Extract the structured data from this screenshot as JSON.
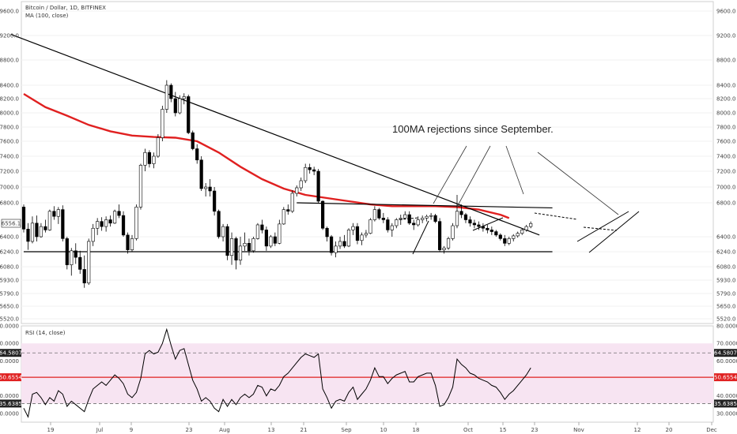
{
  "header": {
    "symbol": "Bitcoin / Dollar, 1D, BITFINEX",
    "indicator": "MA (100, close)"
  },
  "rsi_header": "RSI (14, close)",
  "annotation": "100MA rejections since September.",
  "colors": {
    "up": "#ffffff",
    "down": "#000000",
    "ma": "#e02020",
    "rsi_band": "#f7e4f2",
    "rsi_line": "#000000",
    "rsi_mid": "#e02020",
    "badge_dark": "#222222",
    "badge_red": "#e02020"
  },
  "chart_data": [
    {
      "type": "candlestick",
      "title": "Bitcoin / Dollar, 1D, BITFINEX",
      "price_ticks": [
        "9600.0",
        "9200.0",
        "8800.0",
        "8400.0",
        "8200.0",
        "8000.0",
        "7800.0",
        "7600.0",
        "7400.0",
        "7200.0",
        "7000.0",
        "6800.0",
        "6400.0",
        "6240.0",
        "6080.0",
        "5930.0",
        "5790.0",
        "5650.0",
        "5520.0"
      ],
      "price_badges": [
        "6556.1"
      ],
      "x_ticks": [
        "19",
        "Jul",
        "9",
        "23",
        "Aug",
        "13",
        "21",
        "Sep",
        "10",
        "18",
        "Oct",
        "15",
        "23",
        "Nov",
        "12",
        "20",
        "Dec"
      ],
      "ohlc": [
        [
          6750,
          6780,
          6450,
          6490
        ],
        [
          6490,
          6560,
          6260,
          6350
        ],
        [
          6350,
          6640,
          6330,
          6560
        ],
        [
          6560,
          6650,
          6350,
          6400
        ],
        [
          6400,
          6560,
          6390,
          6520
        ],
        [
          6520,
          6600,
          6450,
          6480
        ],
        [
          6480,
          6720,
          6470,
          6700
        ],
        [
          6700,
          6760,
          6600,
          6640
        ],
        [
          6640,
          6750,
          6550,
          6720
        ],
        [
          6720,
          6770,
          6350,
          6380
        ],
        [
          6380,
          6400,
          6050,
          6100
        ],
        [
          6100,
          6280,
          5980,
          6250
        ],
        [
          6250,
          6330,
          6110,
          6180
        ],
        [
          6180,
          6250,
          6000,
          6050
        ],
        [
          6050,
          6200,
          5850,
          5900
        ],
        [
          5900,
          6380,
          5880,
          6350
        ],
        [
          6350,
          6550,
          6300,
          6500
        ],
        [
          6500,
          6620,
          6420,
          6580
        ],
        [
          6580,
          6630,
          6470,
          6520
        ],
        [
          6520,
          6640,
          6460,
          6600
        ],
        [
          6600,
          6650,
          6520,
          6560
        ],
        [
          6560,
          6720,
          6550,
          6700
        ],
        [
          6700,
          6780,
          6620,
          6650
        ],
        [
          6650,
          6700,
          6400,
          6420
        ],
        [
          6420,
          6450,
          6220,
          6260
        ],
        [
          6260,
          6420,
          6240,
          6380
        ],
        [
          6380,
          6780,
          6360,
          6750
        ],
        [
          6750,
          7300,
          6720,
          7280
        ],
        [
          7280,
          7500,
          7200,
          7450
        ],
        [
          7450,
          7480,
          7250,
          7300
        ],
        [
          7300,
          7450,
          7240,
          7400
        ],
        [
          7400,
          7700,
          7380,
          7650
        ],
        [
          7650,
          8100,
          7600,
          8050
        ],
        [
          8050,
          8480,
          8000,
          8400
        ],
        [
          8400,
          8430,
          8150,
          8200
        ],
        [
          8200,
          8300,
          7950,
          8000
        ],
        [
          8000,
          8250,
          7980,
          8200
        ],
        [
          8200,
          8280,
          8120,
          8230
        ],
        [
          8230,
          8260,
          7700,
          7720
        ],
        [
          7720,
          7750,
          7480,
          7500
        ],
        [
          7500,
          7560,
          7300,
          7350
        ],
        [
          7350,
          7400,
          6950,
          6980
        ],
        [
          6980,
          7050,
          6880,
          7000
        ],
        [
          7000,
          7100,
          6880,
          6950
        ],
        [
          6950,
          7000,
          6650,
          6700
        ],
        [
          6700,
          6720,
          6380,
          6400
        ],
        [
          6400,
          6550,
          6350,
          6520
        ],
        [
          6520,
          6550,
          6150,
          6200
        ],
        [
          6200,
          6450,
          6100,
          6380
        ],
        [
          6380,
          6400,
          6050,
          6150
        ],
        [
          6150,
          6400,
          6100,
          6300
        ],
        [
          6300,
          6450,
          6250,
          6330
        ],
        [
          6330,
          6380,
          6200,
          6250
        ],
        [
          6250,
          6400,
          6230,
          6380
        ],
        [
          6380,
          6560,
          6370,
          6540
        ],
        [
          6540,
          6600,
          6440,
          6480
        ],
        [
          6480,
          6520,
          6250,
          6300
        ],
        [
          6300,
          6420,
          6280,
          6400
        ],
        [
          6400,
          6450,
          6300,
          6330
        ],
        [
          6330,
          6600,
          6320,
          6550
        ],
        [
          6550,
          6750,
          6540,
          6720
        ],
        [
          6720,
          6780,
          6660,
          6700
        ],
        [
          6700,
          6960,
          6680,
          6920
        ],
        [
          6920,
          7020,
          6880,
          6990
        ],
        [
          6990,
          7120,
          6950,
          7080
        ],
        [
          7080,
          7300,
          7050,
          7250
        ],
        [
          7250,
          7300,
          7170,
          7220
        ],
        [
          7220,
          7260,
          7150,
          7200
        ],
        [
          7200,
          7230,
          6800,
          6820
        ],
        [
          6820,
          6830,
          6480,
          6500
        ],
        [
          6500,
          6520,
          6350,
          6400
        ],
        [
          6400,
          6420,
          6200,
          6230
        ],
        [
          6230,
          6350,
          6180,
          6300
        ],
        [
          6300,
          6400,
          6270,
          6350
        ],
        [
          6350,
          6420,
          6280,
          6300
        ],
        [
          6300,
          6500,
          6290,
          6480
        ],
        [
          6480,
          6560,
          6420,
          6520
        ],
        [
          6520,
          6560,
          6320,
          6360
        ],
        [
          6360,
          6450,
          6310,
          6420
        ],
        [
          6420,
          6480,
          6390,
          6440
        ],
        [
          6440,
          6620,
          6430,
          6600
        ],
        [
          6600,
          6760,
          6580,
          6720
        ],
        [
          6720,
          6740,
          6600,
          6620
        ],
        [
          6620,
          6680,
          6560,
          6600
        ],
        [
          6600,
          6630,
          6450,
          6480
        ],
        [
          6480,
          6560,
          6400,
          6530
        ],
        [
          6530,
          6620,
          6500,
          6600
        ],
        [
          6600,
          6660,
          6540,
          6620
        ],
        [
          6620,
          6700,
          6600,
          6660
        ],
        [
          6660,
          6700,
          6540,
          6560
        ],
        [
          6560,
          6600,
          6480,
          6540
        ],
        [
          6540,
          6640,
          6520,
          6600
        ],
        [
          6600,
          6650,
          6560,
          6620
        ],
        [
          6620,
          6660,
          6580,
          6640
        ],
        [
          6640,
          6680,
          6600,
          6650
        ],
        [
          6650,
          6670,
          6560,
          6580
        ],
        [
          6580,
          6620,
          6240,
          6260
        ],
        [
          6260,
          6300,
          6220,
          6280
        ],
        [
          6280,
          6400,
          6260,
          6380
        ],
        [
          6380,
          6560,
          6360,
          6530
        ],
        [
          6530,
          6900,
          6500,
          6700
        ],
        [
          6700,
          6780,
          6620,
          6660
        ],
        [
          6660,
          6680,
          6560,
          6600
        ],
        [
          6600,
          6640,
          6520,
          6560
        ],
        [
          6560,
          6600,
          6500,
          6540
        ],
        [
          6540,
          6580,
          6480,
          6520
        ],
        [
          6520,
          6560,
          6460,
          6500
        ],
        [
          6500,
          6540,
          6440,
          6480
        ],
        [
          6480,
          6520,
          6420,
          6460
        ],
        [
          6460,
          6480,
          6400,
          6420
        ],
        [
          6420,
          6440,
          6360,
          6380
        ],
        [
          6380,
          6420,
          6300,
          6330
        ],
        [
          6330,
          6400,
          6310,
          6380
        ],
        [
          6380,
          6430,
          6350,
          6410
        ],
        [
          6410,
          6460,
          6390,
          6440
        ],
        [
          6440,
          6500,
          6420,
          6480
        ],
        [
          6480,
          6540,
          6460,
          6520
        ],
        [
          6520,
          6580,
          6500,
          6556
        ]
      ],
      "ma100": [
        [
          0,
          8270
        ],
        [
          5,
          8080
        ],
        [
          10,
          7960
        ],
        [
          15,
          7830
        ],
        [
          20,
          7740
        ],
        [
          25,
          7680
        ],
        [
          30,
          7660
        ],
        [
          35,
          7650
        ],
        [
          40,
          7600
        ],
        [
          45,
          7450
        ],
        [
          50,
          7260
        ],
        [
          55,
          7100
        ],
        [
          60,
          6980
        ],
        [
          65,
          6900
        ],
        [
          70,
          6860
        ],
        [
          75,
          6820
        ],
        [
          80,
          6780
        ],
        [
          85,
          6760
        ],
        [
          90,
          6760
        ],
        [
          95,
          6760
        ],
        [
          100,
          6750
        ],
        [
          105,
          6720
        ],
        [
          110,
          6660
        ],
        [
          112,
          6620
        ]
      ],
      "trendlines": [
        {
          "from": [
            -3,
            9220
          ],
          "to": [
            119,
            6420
          ]
        },
        {
          "from": [
            63,
            6800
          ],
          "to": [
            122,
            6740
          ]
        },
        {
          "from": [
            0,
            6240
          ],
          "to": [
            122,
            6240
          ]
        }
      ]
    },
    {
      "type": "line",
      "title": "RSI (14, close)",
      "ylim": [
        25,
        80
      ],
      "y_ticks": [
        "80.0000",
        "70.0000",
        "60.0000",
        "50.0000",
        "40.0000",
        "30.0000"
      ],
      "badges": [
        "64.5807",
        "50.6554",
        "35.6385"
      ],
      "band": [
        35.6385,
        70
      ],
      "levels": [
        64.5807,
        50.6554,
        35.6385
      ],
      "values": [
        33,
        28,
        41,
        42,
        39,
        35,
        39,
        37,
        43,
        41,
        34,
        37,
        35,
        33,
        31,
        38,
        44,
        46,
        48,
        46,
        49,
        52,
        50,
        47,
        41,
        39,
        42,
        50,
        64,
        66,
        64,
        65,
        70,
        78,
        69,
        61,
        66,
        67,
        58,
        49,
        44,
        37,
        39,
        37,
        33,
        31,
        38,
        34,
        38,
        35,
        39,
        41,
        39,
        41,
        46,
        45,
        40,
        44,
        43,
        46,
        51,
        53,
        56,
        59,
        62,
        64,
        63,
        62,
        64,
        44,
        39,
        33,
        37,
        38,
        37,
        42,
        45,
        38,
        41,
        44,
        49,
        56,
        51,
        51,
        47,
        50,
        52,
        53,
        54,
        48,
        48,
        51,
        52,
        53,
        53,
        46,
        34,
        35,
        39,
        45,
        61,
        58,
        56,
        53,
        52,
        50,
        49,
        48,
        46,
        45,
        42,
        38,
        41,
        43,
        46,
        49,
        52,
        56
      ]
    }
  ]
}
